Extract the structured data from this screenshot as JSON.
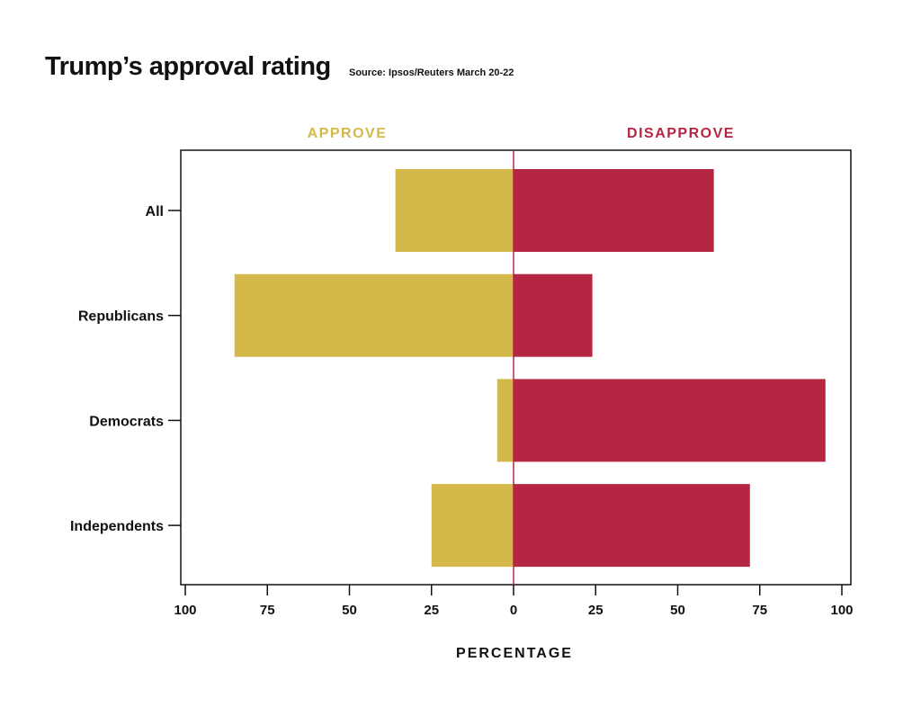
{
  "title": "Trump’s approval rating",
  "source": "Source: Ipsos/Reuters March 20-22",
  "colors": {
    "approve": "#D4B94A",
    "disapprove": "#B52642",
    "axis": "#111111",
    "zero_line": "#B52642"
  },
  "chart_data": {
    "type": "bar",
    "orientation": "horizontal-diverging",
    "categories": [
      "All",
      "Republicans",
      "Democrats",
      "Independents"
    ],
    "series": [
      {
        "name": "APPROVE",
        "values": [
          36,
          85,
          5,
          25
        ]
      },
      {
        "name": "DISAPPROVE",
        "values": [
          61,
          24,
          95,
          72
        ]
      }
    ],
    "xlabel": "PERCENTAGE",
    "xlim": [
      -100,
      100
    ],
    "xticks": [
      100,
      75,
      50,
      25,
      0,
      25,
      50,
      75,
      100
    ],
    "legend": "top"
  }
}
